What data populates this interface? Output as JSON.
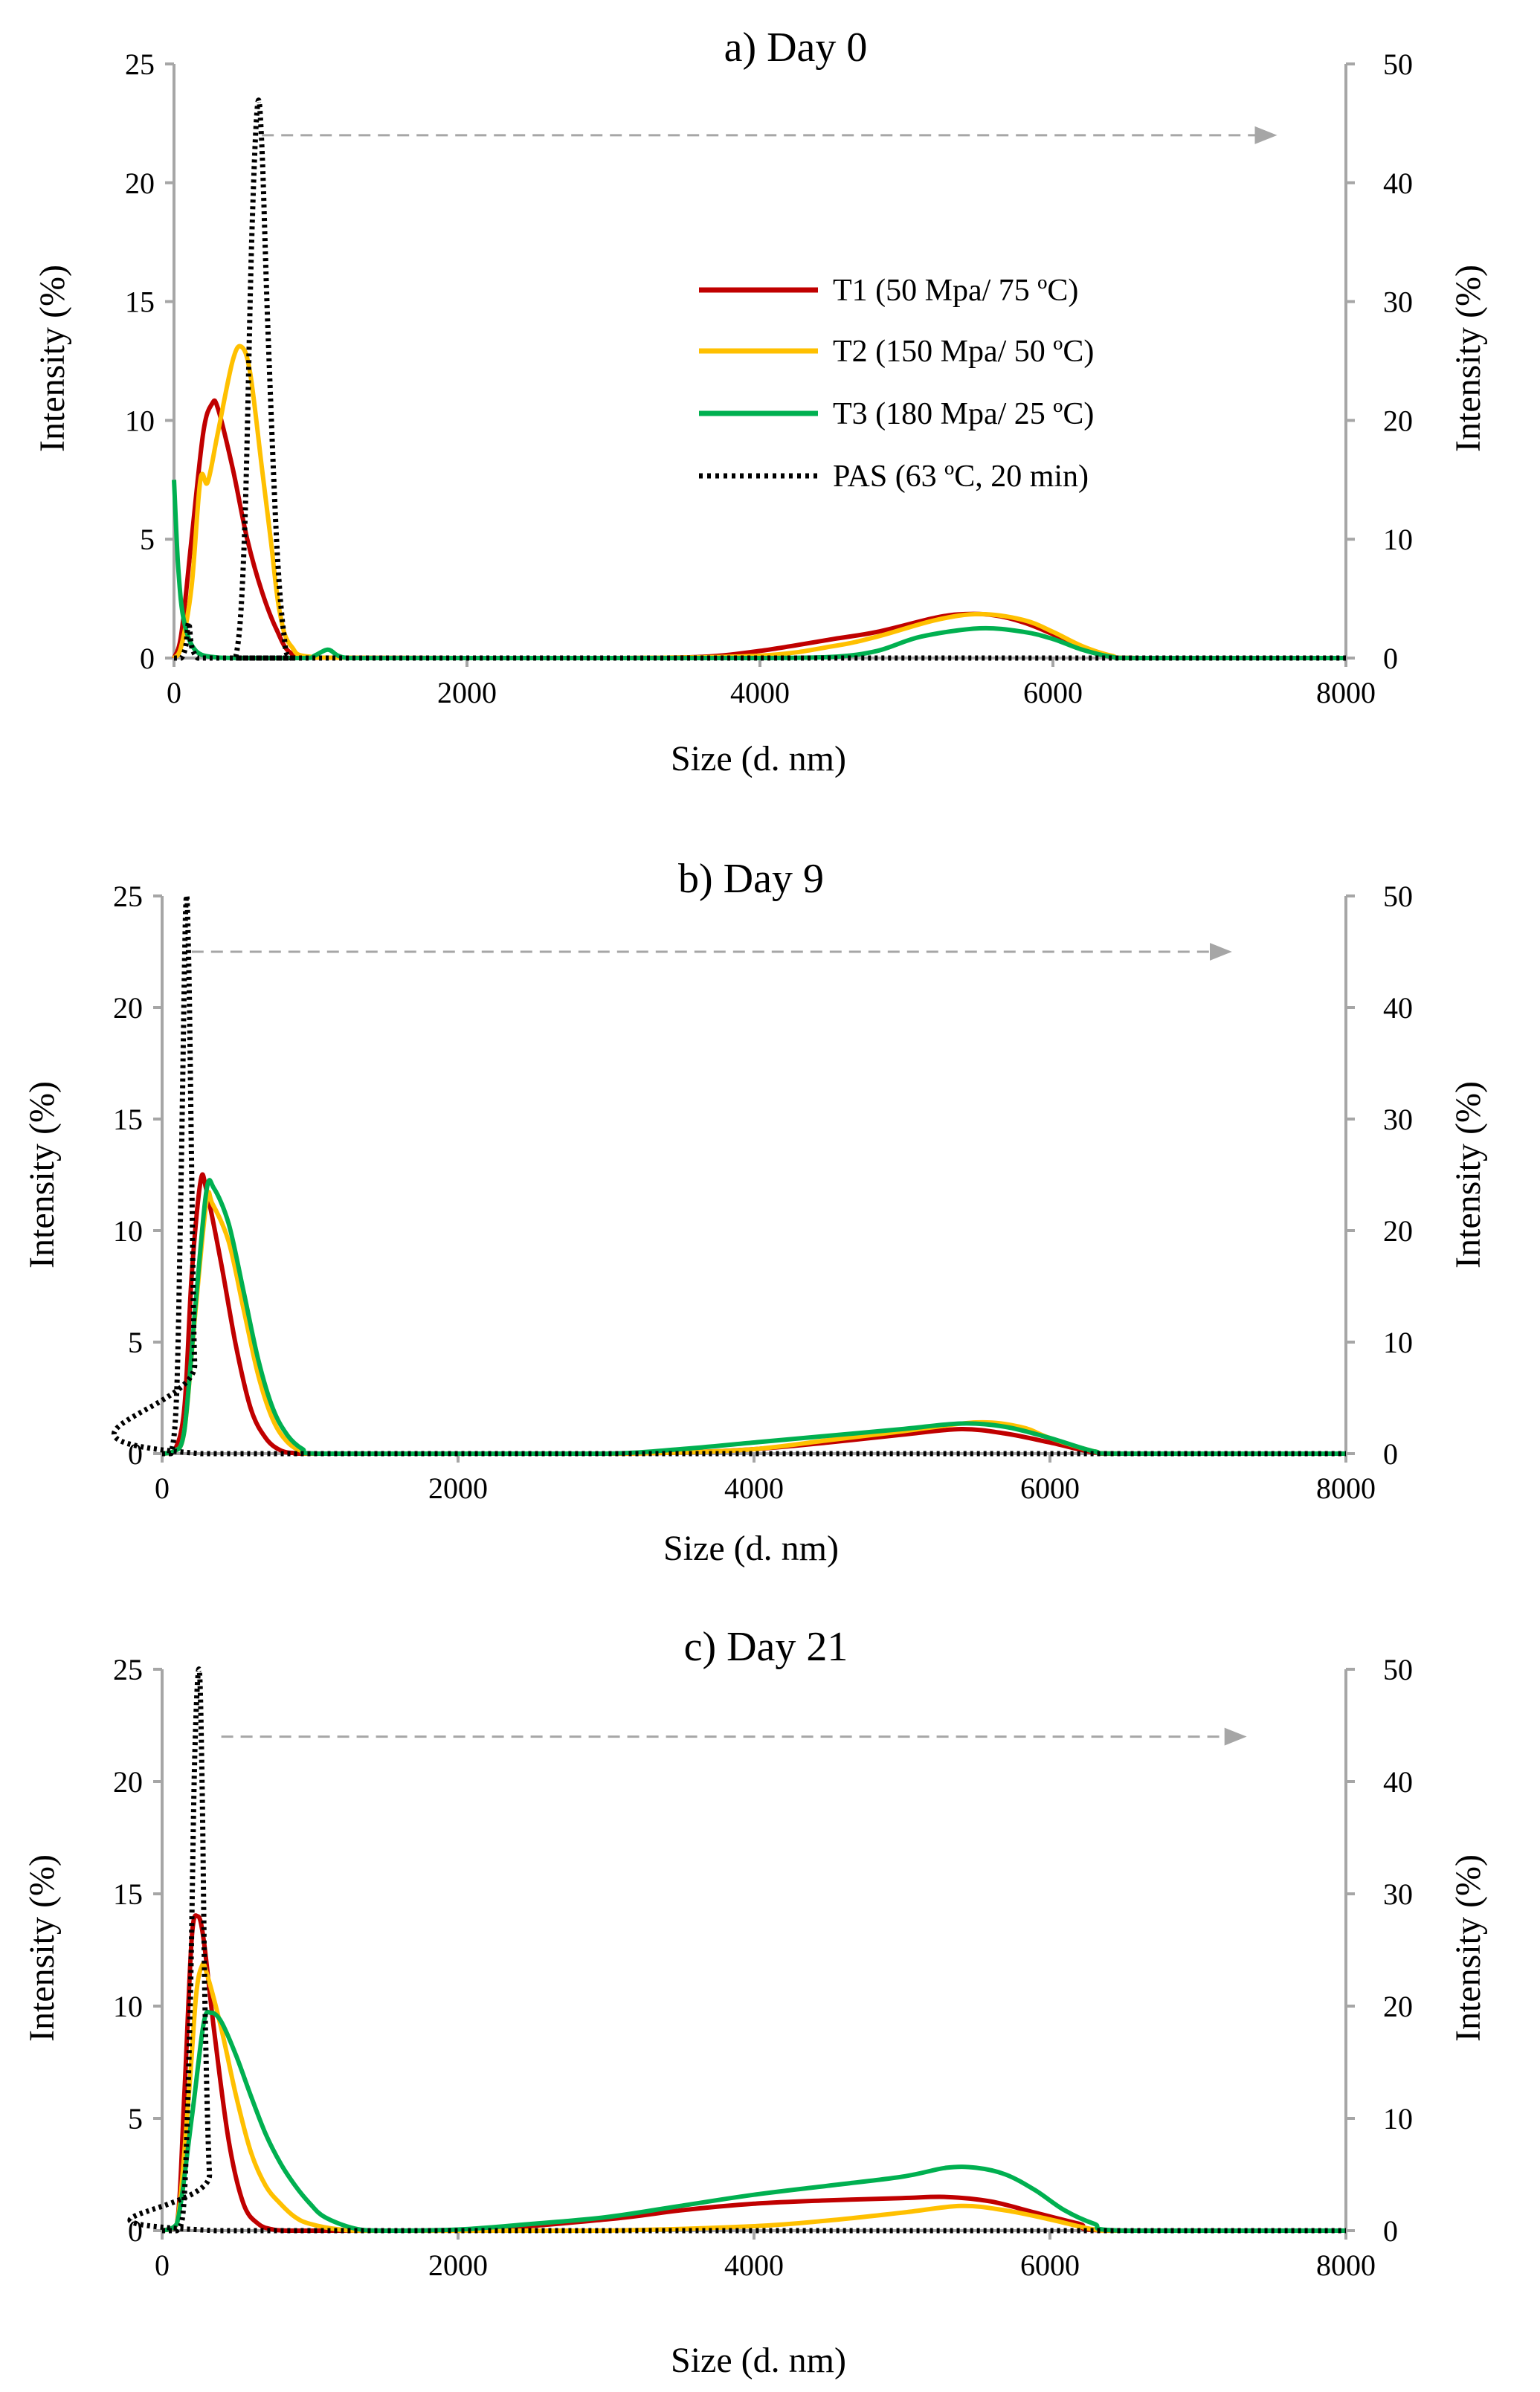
{
  "colors": {
    "T1": "#c00000",
    "T2": "#ffc000",
    "T3": "#00b050",
    "PAS": "#000000",
    "axis": "#a6a6a6",
    "arrow": "#a6a6a6"
  },
  "legend": {
    "T1": "T1 (50 Mpa/ 75 ºC)",
    "T2": "T2 (150 Mpa/ 50 ºC)",
    "T3": "T3 (180 Mpa/ 25 ºC)",
    "PAS": "PAS (63 ºC, 20 min)"
  },
  "chart_data": [
    {
      "type": "line",
      "title": "a) Day 0",
      "xlabel": "Size (d. nm)",
      "ylabel": "Intensity (%)",
      "ylabel_right": "Intensity (%)",
      "xlim": [
        0,
        8000
      ],
      "ylim": [
        0,
        25
      ],
      "ylim_right": [
        0,
        50
      ],
      "xticks": [
        "0",
        "2000",
        "4000",
        "6000",
        "8000"
      ],
      "yticks": [
        "0",
        "5",
        "10",
        "15",
        "20",
        "25"
      ],
      "yticks_right": [
        "0",
        "10",
        "20",
        "30",
        "40",
        "50"
      ],
      "arrow": {
        "from_x": 600,
        "to_x": 7500,
        "y_right": 44,
        "direction": "right"
      },
      "series": [
        {
          "name": "T1",
          "axis": "left",
          "x": [
            0,
            50,
            120,
            200,
            260,
            300,
            400,
            500,
            600,
            700,
            800,
            1000,
            2000,
            3000,
            3600,
            4000,
            4500,
            4800,
            5200,
            5400,
            5600,
            5800,
            6000,
            6200,
            6400,
            6600,
            8000
          ],
          "y": [
            0,
            1,
            5,
            9.5,
            10.7,
            10.5,
            8,
            5,
            2.8,
            1.2,
            0.2,
            0.02,
            0,
            0,
            0.05,
            0.3,
            0.8,
            1.1,
            1.7,
            1.85,
            1.8,
            1.5,
            1.0,
            0.4,
            0.05,
            0,
            0
          ]
        },
        {
          "name": "T2",
          "axis": "left",
          "x": [
            0,
            50,
            120,
            180,
            230,
            300,
            400,
            460,
            520,
            600,
            660,
            720,
            800,
            1000,
            2000,
            3000,
            4000,
            4500,
            4800,
            5200,
            5500,
            5800,
            6000,
            6200,
            6400,
            6600,
            8000
          ],
          "y": [
            0,
            0.5,
            3,
            7.5,
            7.4,
            9.5,
            12.5,
            13.1,
            12,
            8,
            5,
            2,
            0.5,
            0.02,
            0,
            0,
            0.1,
            0.5,
            0.9,
            1.6,
            1.85,
            1.6,
            1.1,
            0.5,
            0.1,
            0,
            0
          ]
        },
        {
          "name": "T3",
          "axis": "left",
          "x": [
            0,
            30,
            70,
            150,
            300,
            500,
            900,
            960,
            1050,
            1120,
            1200,
            1400,
            2000,
            3000,
            4000,
            4500,
            4800,
            5100,
            5500,
            5800,
            6000,
            6200,
            6400,
            6600,
            8000
          ],
          "y": [
            7.5,
            3.7,
            1.5,
            0.3,
            0.02,
            0,
            0,
            0.1,
            0.35,
            0.1,
            0,
            0,
            0,
            0,
            0,
            0.05,
            0.3,
            0.9,
            1.25,
            1.1,
            0.8,
            0.35,
            0.05,
            0,
            0
          ]
        },
        {
          "name": "PAS",
          "axis": "right",
          "x": [
            0,
            50,
            80,
            100,
            120,
            160,
            200,
            300,
            420,
            480,
            530,
            570,
            600,
            640,
            700,
            750,
            800,
            1000,
            8000
          ],
          "y": [
            0,
            0,
            1,
            3,
            1,
            0,
            0,
            0,
            0,
            10,
            35,
            46.5,
            43,
            28,
            10,
            2,
            0,
            0,
            0
          ]
        }
      ]
    },
    {
      "type": "line",
      "title": "b) Day 9",
      "xlabel": "Size (d. nm)",
      "ylabel": "Intensity (%)",
      "ylabel_right": "Intensity (%)",
      "xlim": [
        0,
        8000
      ],
      "ylim": [
        0,
        25
      ],
      "ylim_right": [
        0,
        50
      ],
      "xticks": [
        "0",
        "2000",
        "4000",
        "6000",
        "8000"
      ],
      "yticks": [
        "0",
        "5",
        "10",
        "15",
        "20",
        "25"
      ],
      "yticks_right": [
        "0",
        "10",
        "20",
        "30",
        "40",
        "50"
      ],
      "arrow": {
        "from_x": 200,
        "to_x": 7200,
        "y_right": 45,
        "direction": "right"
      },
      "series": [
        {
          "name": "T1",
          "axis": "left",
          "x": [
            0,
            80,
            150,
            200,
            260,
            300,
            400,
            500,
            600,
            700,
            800,
            900,
            1000,
            2000,
            3000,
            3500,
            4000,
            4500,
            5000,
            5400,
            5700,
            6000,
            6300,
            6500,
            8000
          ],
          "y": [
            0,
            0.1,
            2,
            8,
            12.2,
            11.8,
            8.5,
            4.8,
            2,
            0.7,
            0.15,
            0.02,
            0,
            0,
            0,
            0.05,
            0.2,
            0.5,
            0.85,
            1.1,
            0.9,
            0.5,
            0.05,
            0,
            0
          ]
        },
        {
          "name": "T2",
          "axis": "left",
          "x": [
            0,
            80,
            150,
            220,
            300,
            340,
            450,
            550,
            650,
            750,
            850,
            950,
            1050,
            2000,
            3000,
            3500,
            4000,
            4500,
            5000,
            5500,
            5800,
            6000,
            6300,
            6500,
            8000
          ],
          "y": [
            0,
            0.1,
            1,
            6,
            11.3,
            11.2,
            9.5,
            6.5,
            3.5,
            1.5,
            0.5,
            0.1,
            0,
            0,
            0,
            0.05,
            0.2,
            0.6,
            1.0,
            1.4,
            1.2,
            0.7,
            0.1,
            0,
            0
          ]
        },
        {
          "name": "T3",
          "axis": "left",
          "x": [
            0,
            80,
            150,
            230,
            300,
            350,
            450,
            550,
            650,
            750,
            850,
            950,
            1050,
            2000,
            3000,
            3500,
            4000,
            4500,
            5000,
            5400,
            5700,
            6000,
            6300,
            6500,
            8000
          ],
          "y": [
            0,
            0.1,
            1,
            7,
            11.8,
            11.9,
            10.3,
            7.3,
            4.2,
            2.0,
            0.8,
            0.2,
            0,
            0,
            0,
            0.2,
            0.5,
            0.8,
            1.1,
            1.35,
            1.2,
            0.7,
            0.1,
            0,
            0
          ]
        },
        {
          "name": "PAS",
          "axis": "right",
          "x": [
            0,
            60,
            100,
            130,
            160,
            180,
            200,
            220,
            260,
            8000
          ],
          "y": [
            0,
            0,
            6,
            26,
            49,
            44,
            25,
            8,
            0,
            0
          ]
        }
      ]
    },
    {
      "type": "line",
      "title": "c) Day 21",
      "xlabel": "Size (d. nm)",
      "ylabel": "Intensity (%)",
      "ylabel_right": "Intensity (%)",
      "xlim": [
        0,
        8000
      ],
      "ylim": [
        0,
        25
      ],
      "ylim_right": [
        0,
        50
      ],
      "xticks": [
        "0",
        "2000",
        "4000",
        "6000",
        "8000"
      ],
      "yticks": [
        "0",
        "5",
        "10",
        "15",
        "20",
        "25"
      ],
      "yticks_right": [
        "0",
        "10",
        "20",
        "30",
        "40",
        "50"
      ],
      "arrow": {
        "from_x": 400,
        "to_x": 7300,
        "y_right": 44,
        "direction": "right"
      },
      "series": [
        {
          "name": "T1",
          "axis": "left",
          "x": [
            0,
            100,
            150,
            200,
            240,
            280,
            350,
            450,
            550,
            650,
            750,
            850,
            1000,
            2000,
            3000,
            3500,
            4000,
            4500,
            5000,
            5300,
            5600,
            5900,
            6200,
            6400,
            8000
          ],
          "y": [
            0,
            0.3,
            6,
            13,
            14,
            13,
            9,
            4,
            1.2,
            0.3,
            0.05,
            0,
            0,
            0,
            0.5,
            0.9,
            1.2,
            1.35,
            1.45,
            1.5,
            1.3,
            0.8,
            0.3,
            0,
            0
          ]
        },
        {
          "name": "T2",
          "axis": "left",
          "x": [
            0,
            100,
            180,
            230,
            270,
            300,
            400,
            500,
            600,
            700,
            800,
            900,
            1000,
            1200,
            1400,
            2000,
            3000,
            4000,
            4500,
            5000,
            5400,
            5700,
            6000,
            6300,
            6500,
            8000
          ],
          "y": [
            0,
            0.3,
            6,
            10.5,
            11.8,
            11.5,
            9,
            6,
            3.5,
            2,
            1.2,
            0.6,
            0.3,
            0.05,
            0,
            0,
            0,
            0.2,
            0.45,
            0.8,
            1.1,
            0.9,
            0.5,
            0.05,
            0,
            0
          ]
        },
        {
          "name": "T3",
          "axis": "left",
          "x": [
            0,
            100,
            200,
            280,
            330,
            400,
            500,
            600,
            700,
            800,
            900,
            1000,
            1100,
            1300,
            1500,
            2000,
            2500,
            3000,
            3500,
            4000,
            4500,
            5000,
            5300,
            5500,
            5700,
            5900,
            6100,
            6300,
            6500,
            8000
          ],
          "y": [
            0,
            0.3,
            5,
            9.2,
            9.7,
            9.3,
            7.8,
            6,
            4.3,
            3,
            2,
            1.2,
            0.6,
            0.1,
            0,
            0.05,
            0.3,
            0.6,
            1.1,
            1.6,
            2.0,
            2.4,
            2.8,
            2.8,
            2.5,
            1.8,
            0.9,
            0.3,
            0,
            0
          ]
        },
        {
          "name": "PAS",
          "axis": "right",
          "x": [
            0,
            100,
            150,
            190,
            220,
            250,
            270,
            290,
            320,
            360,
            8000
          ],
          "y": [
            0,
            0,
            3,
            20,
            42,
            50,
            40,
            20,
            5,
            0,
            0
          ]
        }
      ]
    }
  ]
}
